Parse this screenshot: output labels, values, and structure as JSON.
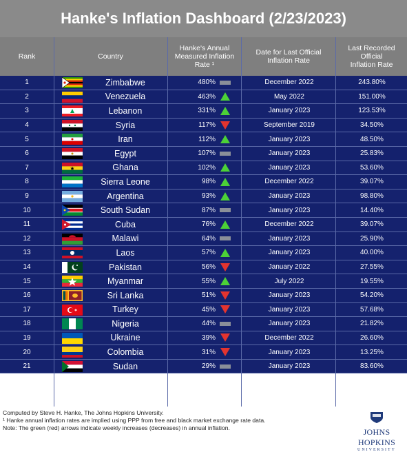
{
  "chart_data": {
    "type": "table",
    "title": "Hanke's Inflation Dashboard (2/23/2023)",
    "columns": [
      "Rank",
      "Country",
      "Hanke's Annual Measured Inflation Rate ¹",
      "Date for Last Official Inflation Rate",
      "Last Recorded Official Inflation Rate"
    ],
    "rows": [
      {
        "rank": "1",
        "country": "Zimbabwe",
        "rate": "480%",
        "trend": "flat",
        "date": "December 2022",
        "official": "243.80%"
      },
      {
        "rank": "2",
        "country": "Venezuela",
        "rate": "463%",
        "trend": "up",
        "date": "May 2022",
        "official": "151.00%"
      },
      {
        "rank": "3",
        "country": "Lebanon",
        "rate": "331%",
        "trend": "up",
        "date": "January 2023",
        "official": "123.53%"
      },
      {
        "rank": "4",
        "country": "Syria",
        "rate": "117%",
        "trend": "down",
        "date": "September 2019",
        "official": "34.50%"
      },
      {
        "rank": "5",
        "country": "Iran",
        "rate": "112%",
        "trend": "up",
        "date": "January 2023",
        "official": "48.50%"
      },
      {
        "rank": "6",
        "country": "Egypt",
        "rate": "107%",
        "trend": "flat",
        "date": "January 2023",
        "official": "25.83%"
      },
      {
        "rank": "7",
        "country": "Ghana",
        "rate": "102%",
        "trend": "up",
        "date": "January 2023",
        "official": "53.60%"
      },
      {
        "rank": "8",
        "country": "Sierra Leone",
        "rate": "98%",
        "trend": "up",
        "date": "December 2022",
        "official": "39.07%"
      },
      {
        "rank": "9",
        "country": "Argentina",
        "rate": "93%",
        "trend": "up",
        "date": "January 2023",
        "official": "98.80%"
      },
      {
        "rank": "10",
        "country": "South Sudan",
        "rate": "87%",
        "trend": "flat",
        "date": "January 2023",
        "official": "14.40%"
      },
      {
        "rank": "11",
        "country": "Cuba",
        "rate": "76%",
        "trend": "up",
        "date": "December 2022",
        "official": "39.07%"
      },
      {
        "rank": "12",
        "country": "Malawi",
        "rate": "64%",
        "trend": "flat",
        "date": "January 2023",
        "official": "25.90%"
      },
      {
        "rank": "13",
        "country": "Laos",
        "rate": "57%",
        "trend": "up",
        "date": "January 2023",
        "official": "40.00%"
      },
      {
        "rank": "14",
        "country": "Pakistan",
        "rate": "56%",
        "trend": "down",
        "date": "January 2022",
        "official": "27.55%"
      },
      {
        "rank": "15",
        "country": "Myanmar",
        "rate": "55%",
        "trend": "up",
        "date": "July 2022",
        "official": "19.55%"
      },
      {
        "rank": "16",
        "country": "Sri Lanka",
        "rate": "51%",
        "trend": "down",
        "date": "January 2023",
        "official": "54.20%"
      },
      {
        "rank": "17",
        "country": "Turkey",
        "rate": "45%",
        "trend": "down",
        "date": "January 2023",
        "official": "57.68%"
      },
      {
        "rank": "18",
        "country": "Nigeria",
        "rate": "44%",
        "trend": "flat",
        "date": "January 2023",
        "official": "21.82%"
      },
      {
        "rank": "19",
        "country": "Ukraine",
        "rate": "39%",
        "trend": "down",
        "date": "December 2022",
        "official": "26.60%"
      },
      {
        "rank": "20",
        "country": "Colombia",
        "rate": "31%",
        "trend": "down",
        "date": "January 2023",
        "official": "13.25%"
      },
      {
        "rank": "21",
        "country": "Sudan",
        "rate": "29%",
        "trend": "flat",
        "date": "January 2023",
        "official": "83.60%"
      }
    ]
  },
  "header": {
    "rank": "Rank",
    "country": "Country",
    "rate_l1": "Hanke's Annual",
    "rate_l2": "Measured Inflation",
    "rate_l3": "Rate ¹",
    "date_l1": "Date for Last Official",
    "date_l2": "Inflation Rate",
    "last_l1": "Last Recorded Official",
    "last_l2": "Inflation Rate"
  },
  "footer": {
    "line1": "Computed by Steve H. Hanke, The Johns Hopkins University.",
    "line2": "¹ Hanke annual inflation rates are implied using PPP from free and black market exchange rate data.",
    "line3": "Note: The green (red) arrows indicate weekly increases (decreases) in annual inflation."
  },
  "logo": {
    "name": "JOHNS HOPKINS",
    "sub": "UNIVERSITY"
  },
  "colors": {
    "up": "#4cd137",
    "down": "#e3342f",
    "flat": "#8a8f99",
    "row": "#14216d",
    "header": "#7f7f7f",
    "title": "#8a8a8a"
  }
}
